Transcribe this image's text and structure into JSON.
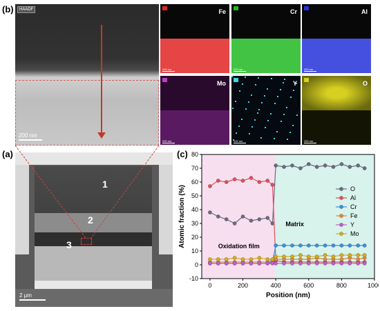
{
  "panels": {
    "a": "(a)",
    "b": "(b)",
    "c": "(c)"
  },
  "haadf": {
    "tag": "HAADF",
    "scale_bar": "200 nm"
  },
  "eds_maps": [
    {
      "element": "Fe",
      "color": "#e02424"
    },
    {
      "element": "Cr",
      "color": "#22b822"
    },
    {
      "element": "Al",
      "color": "#2432d8"
    },
    {
      "element": "Mo",
      "color": "#c03cc8"
    },
    {
      "element": "Y",
      "color": "#3ad6e8"
    },
    {
      "element": "O",
      "color": "#d8d020"
    }
  ],
  "eds_scale": "200 nm",
  "section": {
    "regions": [
      "1",
      "2",
      "3"
    ],
    "scale_bar": "2 μm"
  },
  "chart_data": {
    "type": "scatter",
    "xlabel": "Position (nm)",
    "ylabel": "Atomic fraction (%)",
    "xlim": [
      -50,
      1000
    ],
    "ylim": [
      -10,
      80
    ],
    "xticks": [
      0,
      200,
      400,
      600,
      800,
      1000
    ],
    "yticks": [
      -10,
      0,
      10,
      20,
      30,
      40,
      50,
      60,
      70,
      80
    ],
    "legend_position": "right",
    "annotations": [
      "Oxidation film",
      "Matrix"
    ],
    "shaded_region": {
      "x": [
        -50,
        395
      ],
      "color": "#f7dff0"
    },
    "x": [
      0,
      50,
      100,
      150,
      200,
      250,
      300,
      350,
      380,
      400,
      450,
      500,
      550,
      600,
      650,
      700,
      750,
      800,
      850,
      900,
      940
    ],
    "series": [
      {
        "name": "O",
        "color": "#6b6b80",
        "values": [
          38,
          35,
          33,
          30,
          35,
          32,
          33,
          34,
          30,
          72,
          71,
          72,
          70,
          73,
          71,
          72,
          71,
          73,
          71,
          72,
          70
        ]
      },
      {
        "name": "Al",
        "color": "#e0505a",
        "values": [
          57,
          61,
          60,
          62,
          61,
          63,
          60,
          61,
          58,
          3,
          2,
          2,
          2,
          2,
          2,
          2,
          2,
          2,
          2,
          2,
          2
        ]
      },
      {
        "name": "Cr",
        "color": "#3a8ee0",
        "values": [
          1,
          1,
          1,
          1,
          1,
          1,
          1,
          1,
          2,
          14,
          14,
          14,
          14,
          14,
          14,
          14,
          14,
          14,
          14,
          14,
          14
        ]
      },
      {
        "name": "Fe",
        "color": "#e08a3a",
        "values": [
          2,
          2,
          2,
          2,
          2,
          2,
          2,
          2,
          3,
          4,
          4,
          4,
          4,
          4,
          5,
          4,
          4,
          4,
          5,
          4,
          5
        ]
      },
      {
        "name": "Y",
        "color": "#c060c8",
        "values": [
          1,
          1,
          1,
          1,
          1,
          1,
          1,
          1,
          1,
          1,
          1,
          1,
          1,
          1,
          1,
          1,
          1,
          1,
          1,
          1,
          1
        ]
      },
      {
        "name": "Mo",
        "color": "#d0b020",
        "values": [
          4,
          4,
          4,
          5,
          4,
          4,
          5,
          4,
          4,
          6,
          6,
          6,
          7,
          6,
          6,
          7,
          6,
          7,
          7,
          7,
          7
        ]
      }
    ]
  }
}
